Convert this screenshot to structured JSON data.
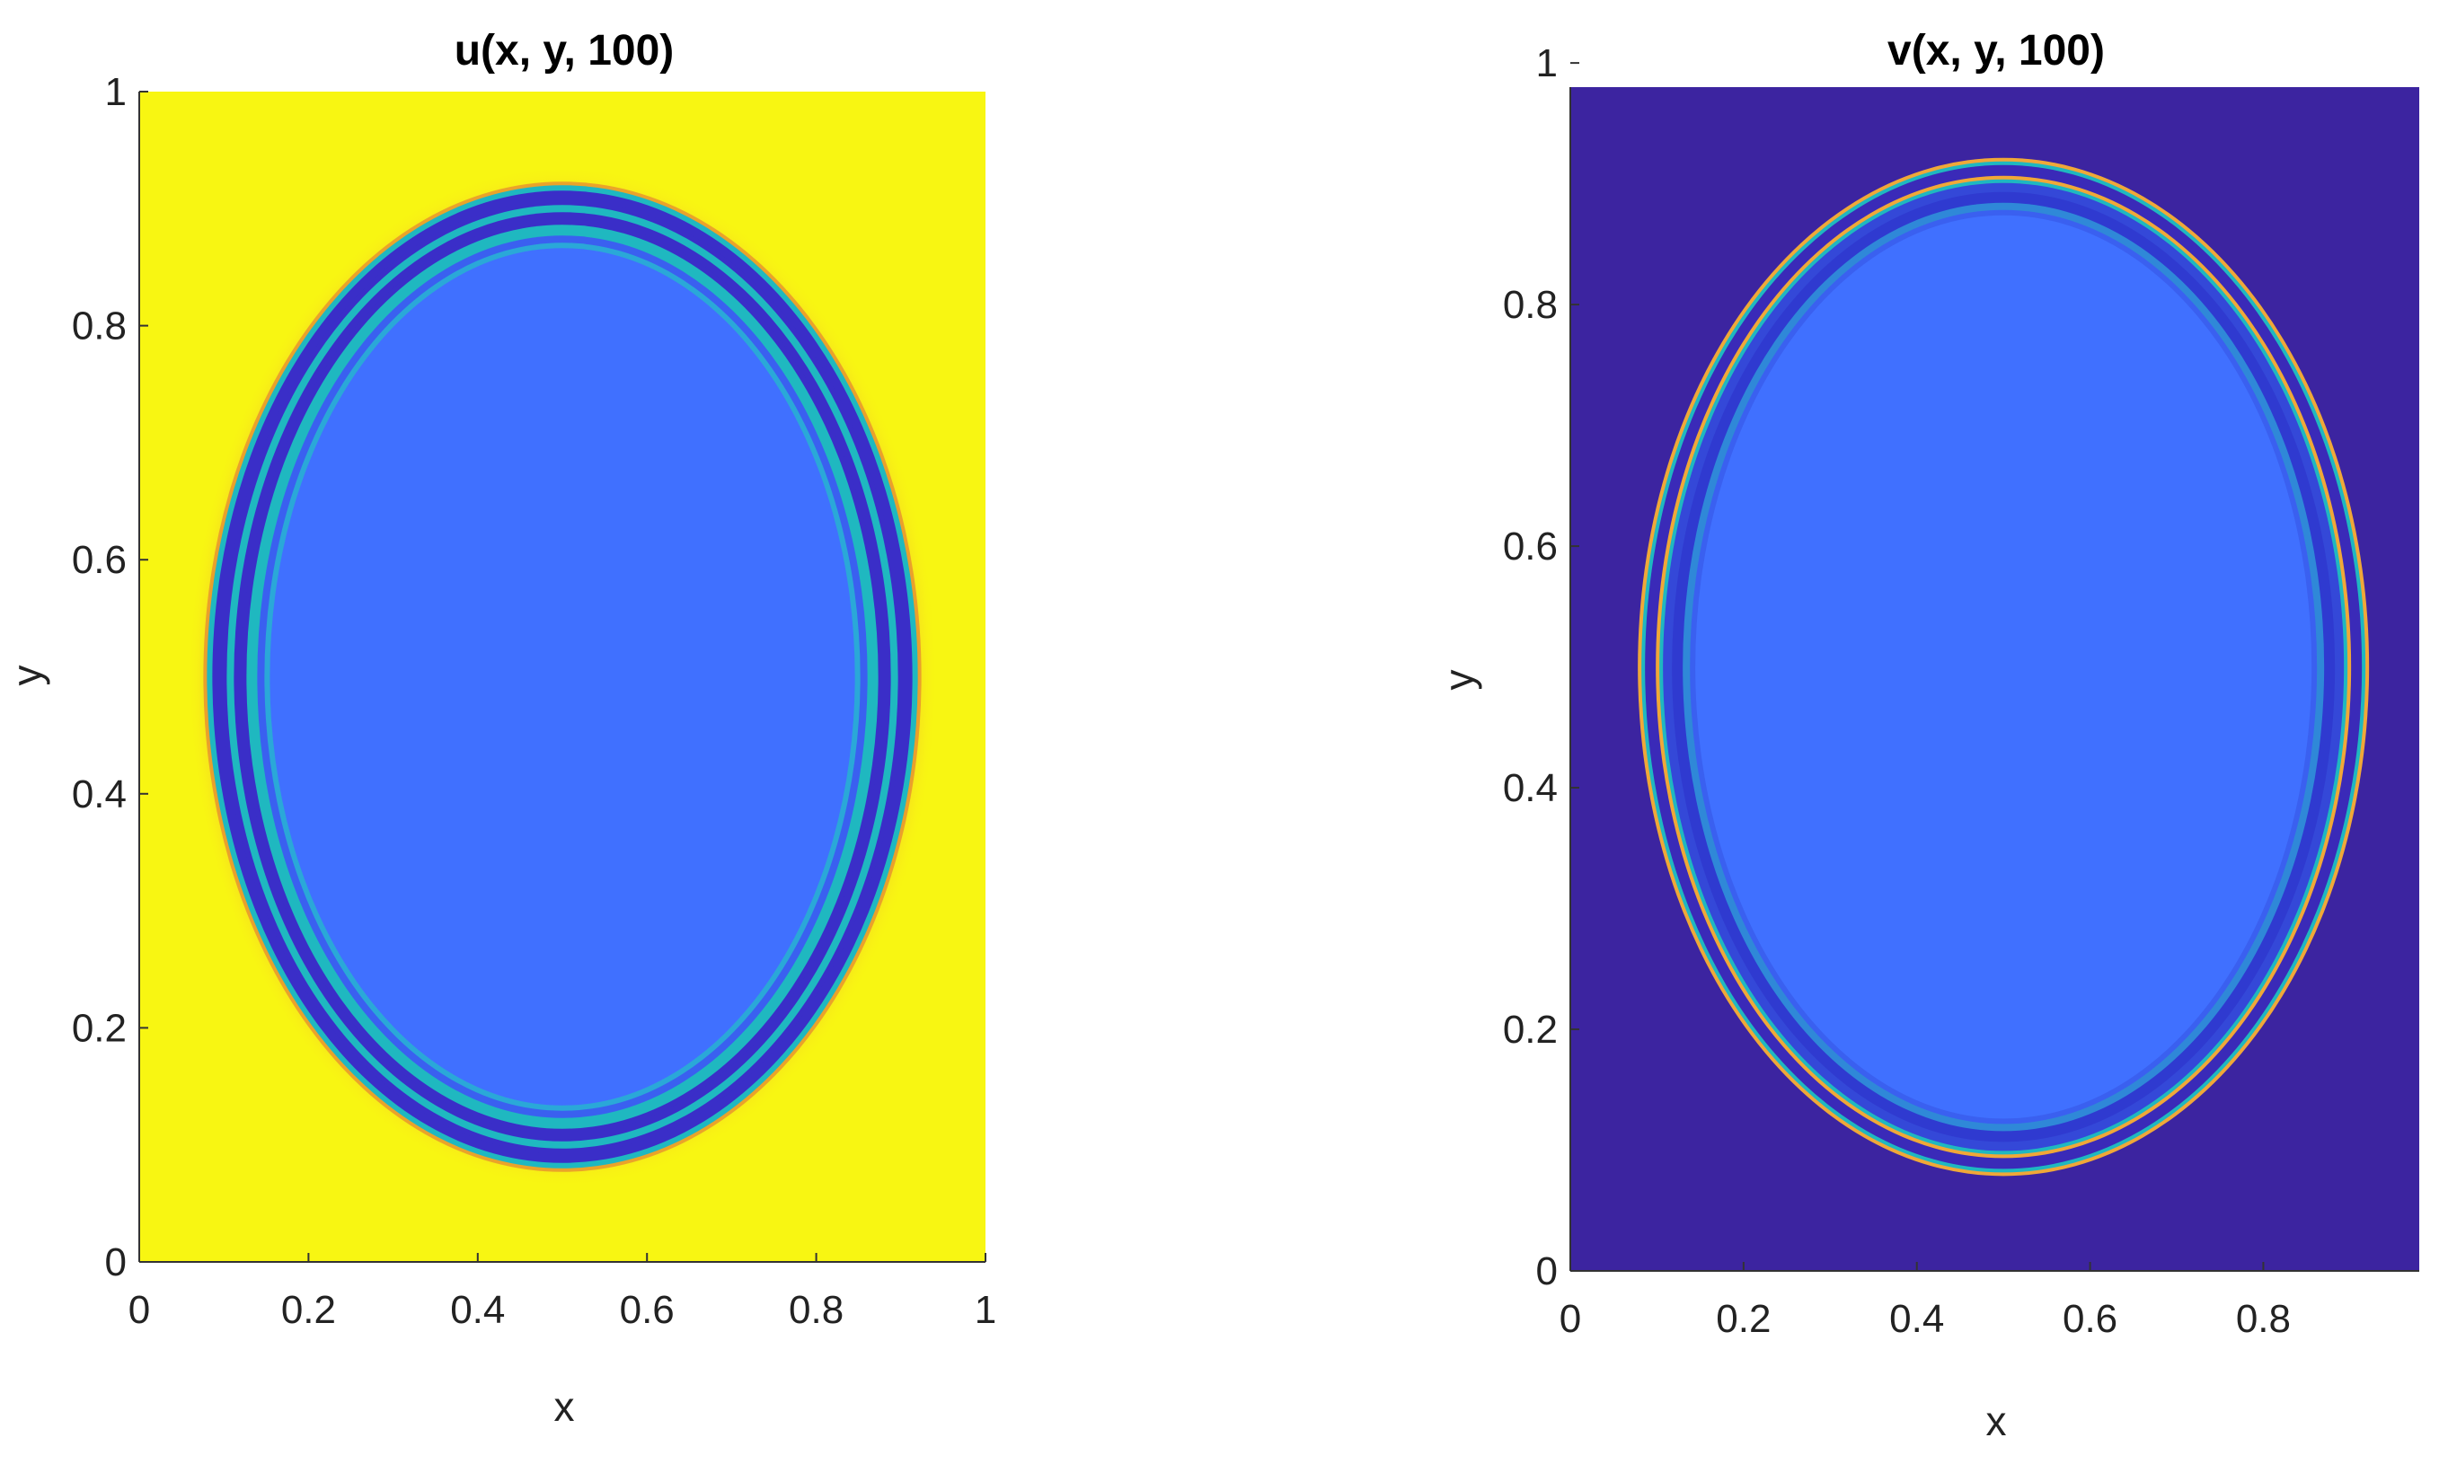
{
  "colors": {
    "yellow": "#f8f612",
    "dark_purple": "#3c24a0",
    "interior_blue": "#4070ff",
    "ring_dark": "#3a2ec8",
    "ring_cyan": "#1fb8c0",
    "ring_orange": "#f0a838",
    "axis": "#333333"
  },
  "chart_data": [
    {
      "type": "heatmap",
      "title": "u(x, y, 100)",
      "xlabel": "x",
      "ylabel": "y",
      "xlim": [
        0,
        1
      ],
      "ylim": [
        0,
        1
      ],
      "xticks": [
        "0",
        "0.2",
        "0.4",
        "0.6",
        "0.8",
        "1"
      ],
      "yticks": [
        "0",
        "0.2",
        "0.4",
        "0.6",
        "0.8",
        "1"
      ],
      "xtick_values": [
        0,
        0.2,
        0.4,
        0.6,
        0.8,
        1
      ],
      "ytick_values": [
        0,
        0.2,
        0.4,
        0.6,
        0.8,
        1
      ],
      "background": "yellow",
      "ellipse_center": [
        0.5,
        0.5
      ],
      "ellipse_outer_radii": [
        0.42,
        0.42
      ]
    },
    {
      "type": "heatmap",
      "title": "v(x, y, 100)",
      "xlabel": "x",
      "ylabel": "y",
      "xlim": [
        0,
        0.98
      ],
      "ylim": [
        0,
        0.98
      ],
      "xticks": [
        "0",
        "0.2",
        "0.4",
        "0.6",
        "0.8"
      ],
      "yticks": [
        "0",
        "0.2",
        "0.4",
        "0.6",
        "0.8",
        "1"
      ],
      "xtick_values": [
        0,
        0.2,
        0.4,
        0.6,
        0.8
      ],
      "ytick_values": [
        0,
        0.2,
        0.4,
        0.6,
        0.8,
        1
      ],
      "background": "dark_purple",
      "ellipse_center": [
        0.5,
        0.5
      ],
      "ellipse_outer_radii": [
        0.42,
        0.42
      ]
    }
  ]
}
